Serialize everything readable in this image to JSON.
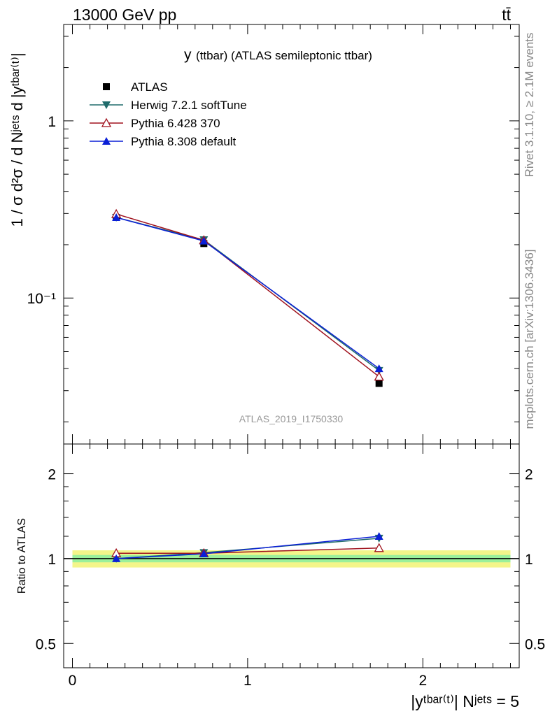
{
  "header": {
    "energy_label": "13000 GeV pp",
    "process_label": "tt̄"
  },
  "side_labels": {
    "rivet": "Rivet 3.1.10, ≥ 2.1M events",
    "mcplots": "mcplots.cern.ch [arXiv:1306.3436]"
  },
  "main": {
    "title_main": "y",
    "title_rest": "(ttbar) (ATLAS semileptonic ttbar)",
    "analysis_id": "ATLAS_2019_I1750330",
    "ylabel": "1 / σ d²σ / d Nʲᵉᵗˢ d |yᵗᵇᵃʳ⁽ᵗ⁾|",
    "ytick_labels": [
      "1",
      "10⁻¹"
    ]
  },
  "ratio": {
    "ylabel": "Ratio to ATLAS",
    "ytick_labels": [
      "0.5",
      "1",
      "2"
    ]
  },
  "x_axis": {
    "xlabel": "|yᵗᵇᵃʳ⁽ᵗ⁾| Nʲᵉᵗˢ = 5",
    "xtick_labels": [
      "0",
      "1",
      "2"
    ]
  },
  "chart_data": [
    {
      "type": "line",
      "panel": "main",
      "yscale": "log",
      "xlim": [
        -0.05,
        2.55
      ],
      "ylim": [
        0.015,
        3.5
      ],
      "x": [
        0.25,
        0.75,
        1.75
      ],
      "series": [
        {
          "name": "ATLAS",
          "values": [
            0.285,
            0.203,
            0.033
          ],
          "marker": "square-filled",
          "color": "#000000"
        },
        {
          "name": "Herwig 7.2.1 softTune",
          "values": [
            0.285,
            0.213,
            0.039
          ],
          "marker": "triangle-down-filled",
          "color": "#1f6b6b"
        },
        {
          "name": "Pythia 6.428 370",
          "values": [
            0.298,
            0.212,
            0.036
          ],
          "marker": "triangle-up-open",
          "color": "#a0121e"
        },
        {
          "name": "Pythia 8.308 default",
          "values": [
            0.285,
            0.21,
            0.04
          ],
          "marker": "triangle-up-filled",
          "color": "#0a1fd6"
        }
      ]
    },
    {
      "type": "line",
      "panel": "ratio",
      "yscale": "log",
      "xlim": [
        -0.05,
        2.55
      ],
      "ylim": [
        0.41,
        2.55
      ],
      "x": [
        0.25,
        0.75,
        1.75
      ],
      "band_inner": [
        0.97,
        1.03
      ],
      "band_outer": [
        0.93,
        1.07
      ],
      "series": [
        {
          "name": "Herwig 7.2.1 softTune",
          "values": [
            1.0,
            1.05,
            1.18
          ]
        },
        {
          "name": "Pythia 6.428 370",
          "values": [
            1.045,
            1.045,
            1.09
          ]
        },
        {
          "name": "Pythia 8.308 default",
          "values": [
            1.0,
            1.04,
            1.2
          ]
        }
      ]
    }
  ]
}
